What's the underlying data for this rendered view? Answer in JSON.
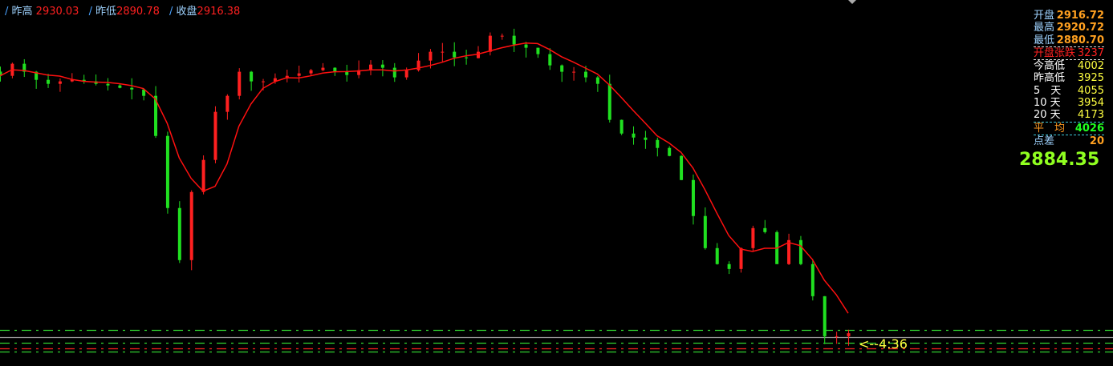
{
  "header": {
    "items": [
      {
        "label": "昨高",
        "value": "2930.03"
      },
      {
        "label": "昨低",
        "value": "2890.78"
      },
      {
        "label": "收盘",
        "value": "2916.38"
      }
    ]
  },
  "panel": {
    "open": {
      "label": "开盘",
      "value": "2916.72"
    },
    "high": {
      "label": "最高",
      "value": "2920.72"
    },
    "low": {
      "label": "最低",
      "value": "2880.70"
    },
    "open_change": {
      "label": "开盘张跌",
      "value": "3237"
    },
    "today_range": {
      "label": "今高低",
      "value": "4002"
    },
    "yest_range": {
      "label": "昨高低",
      "value": "3925"
    },
    "d5": {
      "label": "5　天",
      "value": "4055"
    },
    "d10": {
      "label": "10 天",
      "value": "3954"
    },
    "d20": {
      "label": "20 天",
      "value": "4173"
    },
    "avg": {
      "label": "平　均",
      "value": "4026"
    },
    "spread": {
      "label": "点差",
      "value": "20"
    },
    "current": "2884.35"
  },
  "countdown": "<--4:36",
  "colors": {
    "up": "#ff2020",
    "down": "#20e020",
    "ma": "#ff1010",
    "bg": "#000000"
  },
  "chart_data": {
    "type": "candlestick",
    "ylim": [
      2880.5,
      2923.5
    ],
    "grid": false,
    "closes": [
      2914.59,
      2916.01,
      2915.07,
      2914.12,
      2913.65,
      2913.94,
      2914.12,
      2913.94,
      2913.65,
      2913.46,
      2913.18,
      2912.99,
      2912.24,
      2907.53,
      2899.06,
      2892.94,
      2900.94,
      2904.71,
      2910.36,
      2912.24,
      2915.07,
      2913.94,
      2913.94,
      2914.31,
      2914.59,
      2914.88,
      2915.25,
      2915.54,
      2915.07,
      2914.69,
      2915.25,
      2915.91,
      2915.54,
      2914.41,
      2915.25,
      2916.38,
      2917.42,
      2917.42,
      2916.76,
      2916.67,
      2917.42,
      2919.3,
      2919.3,
      2918.27,
      2917.89,
      2917.14,
      2915.82,
      2915.07,
      2915.07,
      2914.41,
      2913.65,
      2909.42,
      2907.81,
      2907.34,
      2907.06,
      2906.12,
      2905.18,
      2902.35,
      2898.12,
      2894.35,
      2892.47,
      2891.9,
      2894.35,
      2896.7,
      2896.23,
      2892.47,
      2895.29,
      2892.47,
      2888.7,
      2883.99,
      2883.99,
      2884.35
    ],
    "ma_type": "moving average",
    "levels": [
      {
        "price": 2884.75,
        "color": "#30d030",
        "style": "dash-dot"
      },
      {
        "price": 2883.9,
        "color": "#a0a0a0",
        "style": "solid"
      },
      {
        "price": 2883.2,
        "color": "#30d030",
        "style": "dash-dot"
      },
      {
        "price": 2882.6,
        "color": "#ff2020",
        "style": "dash-dot"
      },
      {
        "price": 2882.2,
        "color": "#30d030",
        "style": "dash-dot"
      }
    ]
  }
}
